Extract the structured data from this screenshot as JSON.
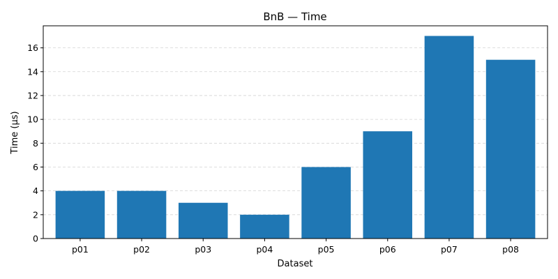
{
  "chart_data": {
    "type": "bar",
    "title": "BnB — Time",
    "xlabel": "Dataset",
    "ylabel": "Time (µs)",
    "categories": [
      "p01",
      "p02",
      "p03",
      "p04",
      "p05",
      "p06",
      "p07",
      "p08"
    ],
    "values": [
      4,
      4,
      3,
      2,
      6,
      9,
      17,
      15
    ],
    "ylim": [
      0,
      17.85
    ],
    "yticks": [
      0,
      2,
      4,
      6,
      8,
      10,
      12,
      14,
      16
    ],
    "grid": "y-dashed",
    "bar_color": "#1f77b4"
  }
}
